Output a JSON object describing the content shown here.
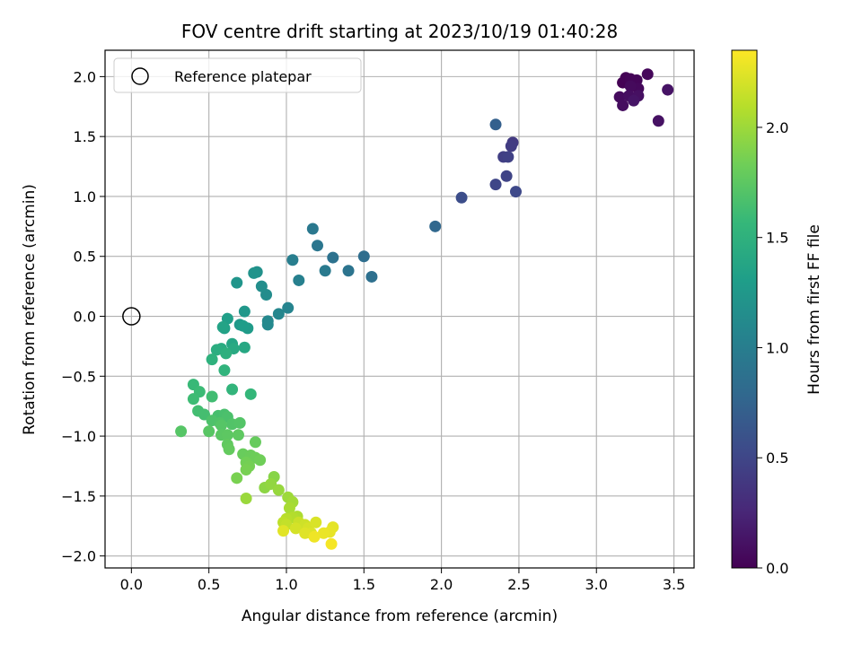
{
  "chart_data": {
    "type": "scatter",
    "title": "FOV centre drift starting at 2023/10/19 01:40:28",
    "xlabel": "Angular distance from reference (arcmin)",
    "ylabel": "Rotation from reference (arcmin)",
    "xlim": [
      -0.17,
      3.63
    ],
    "ylim": [
      -2.1,
      2.22
    ],
    "xticks": [
      0.0,
      0.5,
      1.0,
      1.5,
      2.0,
      2.5,
      3.0,
      3.5
    ],
    "xtick_labels": [
      "0.0",
      "0.5",
      "1.0",
      "1.5",
      "2.0",
      "2.5",
      "3.0",
      "3.5"
    ],
    "yticks": [
      -2.0,
      -1.5,
      -1.0,
      -0.5,
      0.0,
      0.5,
      1.0,
      1.5,
      2.0
    ],
    "ytick_labels": [
      "−2.0",
      "−1.5",
      "−1.0",
      "−0.5",
      "0.0",
      "0.5",
      "1.0",
      "1.5",
      "2.0"
    ],
    "grid": true,
    "legend": {
      "placement": "upper-left",
      "entries": [
        {
          "label": "Reference platepar",
          "marker": "hollow-circle"
        }
      ]
    },
    "reference_point": {
      "x": 0.0,
      "y": 0.0
    },
    "colorbar": {
      "label": "Hours from first FF file",
      "colormap": "viridis",
      "range": [
        0.0,
        2.35
      ],
      "ticks": [
        0.0,
        0.5,
        1.0,
        1.5,
        2.0
      ],
      "tick_labels": [
        "0.0",
        "0.5",
        "1.0",
        "1.5",
        "2.0"
      ]
    },
    "colormap_stops": [
      "#440154",
      "#482878",
      "#3e4989",
      "#31688e",
      "#26828e",
      "#1f9e89",
      "#35b779",
      "#6ece58",
      "#b5de2b",
      "#fde725"
    ],
    "points": [
      [
        3.17,
        1.95,
        0.0
      ],
      [
        3.19,
        1.99,
        0.01
      ],
      [
        3.22,
        1.98,
        0.02
      ],
      [
        3.26,
        1.97,
        0.03
      ],
      [
        3.33,
        2.02,
        0.04
      ],
      [
        3.27,
        1.9,
        0.05
      ],
      [
        3.22,
        1.92,
        0.06
      ],
      [
        3.15,
        1.83,
        0.07
      ],
      [
        3.17,
        1.76,
        0.08
      ],
      [
        3.21,
        1.84,
        0.09
      ],
      [
        3.27,
        1.84,
        0.1
      ],
      [
        3.4,
        1.63,
        0.11
      ],
      [
        3.46,
        1.89,
        0.12
      ],
      [
        3.24,
        1.8,
        0.13
      ],
      [
        2.46,
        1.45,
        0.4
      ],
      [
        2.45,
        1.42,
        0.42
      ],
      [
        2.4,
        1.33,
        0.44
      ],
      [
        2.43,
        1.33,
        0.46
      ],
      [
        2.42,
        1.17,
        0.48
      ],
      [
        2.35,
        1.1,
        0.5
      ],
      [
        2.48,
        1.04,
        0.52
      ],
      [
        2.13,
        0.99,
        0.56
      ],
      [
        2.35,
        1.6,
        0.72
      ],
      [
        1.96,
        0.75,
        0.78
      ],
      [
        1.5,
        0.5,
        0.84
      ],
      [
        1.55,
        0.33,
        0.86
      ],
      [
        1.3,
        0.49,
        0.88
      ],
      [
        1.4,
        0.38,
        0.9
      ],
      [
        1.2,
        0.59,
        0.92
      ],
      [
        1.17,
        0.73,
        0.94
      ],
      [
        1.25,
        0.38,
        0.96
      ],
      [
        1.04,
        0.47,
        1.0
      ],
      [
        1.08,
        0.3,
        1.02
      ],
      [
        1.01,
        0.07,
        1.06
      ],
      [
        0.95,
        0.02,
        1.08
      ],
      [
        0.88,
        -0.04,
        1.1
      ],
      [
        0.88,
        -0.07,
        1.11
      ],
      [
        0.87,
        0.18,
        1.14
      ],
      [
        0.84,
        0.25,
        1.16
      ],
      [
        0.81,
        0.37,
        1.18
      ],
      [
        0.79,
        0.36,
        1.2
      ],
      [
        0.68,
        0.28,
        1.22
      ],
      [
        0.73,
        0.04,
        1.24
      ],
      [
        0.7,
        -0.07,
        1.26
      ],
      [
        0.75,
        -0.1,
        1.28
      ],
      [
        0.72,
        -0.08,
        1.3
      ],
      [
        0.62,
        -0.02,
        1.32
      ],
      [
        0.6,
        -0.1,
        1.34
      ],
      [
        0.59,
        -0.09,
        1.36
      ],
      [
        0.65,
        -0.23,
        1.38
      ],
      [
        0.73,
        -0.26,
        1.4
      ],
      [
        0.66,
        -0.27,
        1.42
      ],
      [
        0.58,
        -0.27,
        1.44
      ],
      [
        0.55,
        -0.28,
        1.46
      ],
      [
        0.61,
        -0.31,
        1.48
      ],
      [
        0.52,
        -0.36,
        1.5
      ],
      [
        0.6,
        -0.45,
        1.52
      ],
      [
        0.65,
        -0.61,
        1.54
      ],
      [
        0.77,
        -0.65,
        1.56
      ],
      [
        0.4,
        -0.57,
        1.58
      ],
      [
        0.44,
        -0.63,
        1.6
      ],
      [
        0.4,
        -0.69,
        1.61
      ],
      [
        0.52,
        -0.67,
        1.62
      ],
      [
        0.43,
        -0.79,
        1.63
      ],
      [
        0.47,
        -0.82,
        1.64
      ],
      [
        0.56,
        -0.83,
        1.65
      ],
      [
        0.6,
        -0.82,
        1.66
      ],
      [
        0.62,
        -0.84,
        1.67
      ],
      [
        0.52,
        -0.87,
        1.68
      ],
      [
        0.57,
        -0.89,
        1.69
      ],
      [
        0.65,
        -0.9,
        1.7
      ],
      [
        0.7,
        -0.89,
        1.71
      ],
      [
        0.58,
        -0.91,
        1.72
      ],
      [
        0.32,
        -0.96,
        1.72
      ],
      [
        0.5,
        -0.96,
        1.73
      ],
      [
        0.58,
        -0.99,
        1.74
      ],
      [
        0.62,
        -0.99,
        1.75
      ],
      [
        0.69,
        -0.99,
        1.76
      ],
      [
        0.62,
        -1.07,
        1.77
      ],
      [
        0.63,
        -1.11,
        1.78
      ],
      [
        0.8,
        -1.05,
        1.79
      ],
      [
        0.72,
        -1.15,
        1.8
      ],
      [
        0.77,
        -1.16,
        1.81
      ],
      [
        0.8,
        -1.18,
        1.82
      ],
      [
        0.83,
        -1.2,
        1.83
      ],
      [
        0.74,
        -1.22,
        1.84
      ],
      [
        0.76,
        -1.25,
        1.85
      ],
      [
        0.74,
        -1.28,
        1.86
      ],
      [
        0.68,
        -1.35,
        1.87
      ],
      [
        0.92,
        -1.34,
        1.92
      ],
      [
        0.86,
        -1.43,
        1.94
      ],
      [
        0.9,
        -1.4,
        1.96
      ],
      [
        0.95,
        -1.45,
        1.98
      ],
      [
        0.74,
        -1.52,
        1.99
      ],
      [
        1.01,
        -1.51,
        2.0
      ],
      [
        1.04,
        -1.55,
        2.02
      ],
      [
        1.02,
        -1.6,
        2.04
      ],
      [
        1.07,
        -1.67,
        2.06
      ],
      [
        1.04,
        -1.68,
        2.08
      ],
      [
        1.0,
        -1.69,
        2.1
      ],
      [
        0.98,
        -1.72,
        2.12
      ],
      [
        1.0,
        -1.74,
        2.14
      ],
      [
        1.08,
        -1.72,
        2.16
      ],
      [
        1.12,
        -1.74,
        2.18
      ],
      [
        1.06,
        -1.77,
        2.2
      ],
      [
        1.14,
        -1.77,
        2.21
      ],
      [
        1.19,
        -1.72,
        2.22
      ],
      [
        1.16,
        -1.81,
        2.23
      ],
      [
        1.12,
        -1.81,
        2.24
      ],
      [
        0.98,
        -1.79,
        2.25
      ],
      [
        1.3,
        -1.76,
        2.26
      ],
      [
        1.28,
        -1.8,
        2.27
      ],
      [
        1.24,
        -1.81,
        2.28
      ],
      [
        1.18,
        -1.84,
        2.3
      ],
      [
        1.29,
        -1.9,
        2.32
      ]
    ]
  }
}
